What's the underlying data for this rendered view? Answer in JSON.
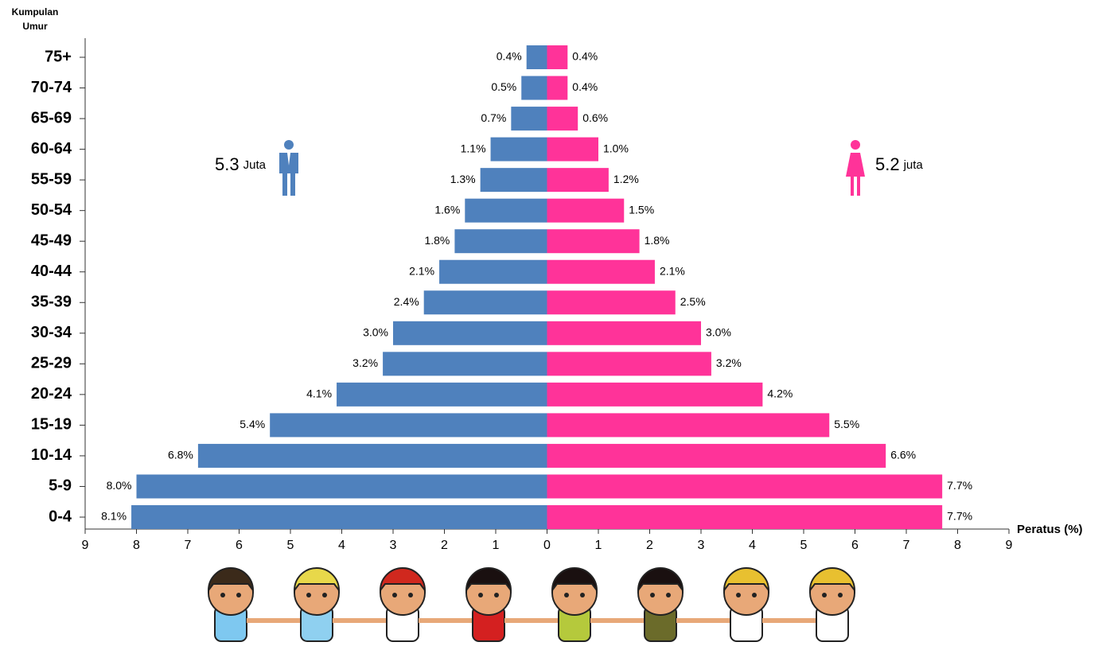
{
  "chart_data": {
    "type": "pyramid",
    "y_label": "Kumpulan Umur",
    "x_label": "Peratus (%)",
    "categories": [
      "75+",
      "70-74",
      "65-69",
      "60-64",
      "55-59",
      "50-54",
      "45-49",
      "40-44",
      "35-39",
      "30-34",
      "25-29",
      "20-24",
      "15-19",
      "10-14",
      "5-9",
      "0-4"
    ],
    "series": [
      {
        "side": "left",
        "color": "#4f81bd",
        "values": [
          0.4,
          0.5,
          0.7,
          1.1,
          1.3,
          1.6,
          1.8,
          2.1,
          2.4,
          3.0,
          3.2,
          4.1,
          5.4,
          6.8,
          8.0,
          8.1
        ],
        "value_labels": [
          "0.4%",
          "0.5%",
          "0.7%",
          "1.1%",
          "1.3%",
          "1.6%",
          "1.8%",
          "2.1%",
          "2.4%",
          "3.0%",
          "3.2%",
          "4.1%",
          "5.4%",
          "6.8%",
          "8.0%",
          "8.1%"
        ]
      },
      {
        "side": "right",
        "color": "#ff3399",
        "values": [
          0.4,
          0.4,
          0.6,
          1.0,
          1.2,
          1.5,
          1.8,
          2.1,
          2.5,
          3.0,
          3.2,
          4.2,
          5.5,
          6.6,
          7.7,
          7.7
        ],
        "value_labels": [
          "0.4%",
          "0.4%",
          "0.6%",
          "1.0%",
          "1.2%",
          "1.5%",
          "1.8%",
          "2.1%",
          "2.5%",
          "3.0%",
          "3.2%",
          "4.2%",
          "5.5%",
          "6.6%",
          "7.7%",
          "7.7%"
        ]
      }
    ],
    "xlim": [
      -9,
      9
    ],
    "xticks": [
      {
        "value": -9,
        "label": "9"
      },
      {
        "value": -8,
        "label": "8"
      },
      {
        "value": -7,
        "label": "7"
      },
      {
        "value": -6,
        "label": "6"
      },
      {
        "value": -5,
        "label": "5"
      },
      {
        "value": -4,
        "label": "4"
      },
      {
        "value": -3,
        "label": "3"
      },
      {
        "value": -2,
        "label": "2"
      },
      {
        "value": -1,
        "label": "1"
      },
      0,
      1,
      2,
      3,
      4,
      5,
      6,
      7,
      8,
      9
    ],
    "annotations": {
      "male_total": "5.3",
      "male_unit": "Juta",
      "female_total": "5.2",
      "female_unit": "juta"
    }
  }
}
